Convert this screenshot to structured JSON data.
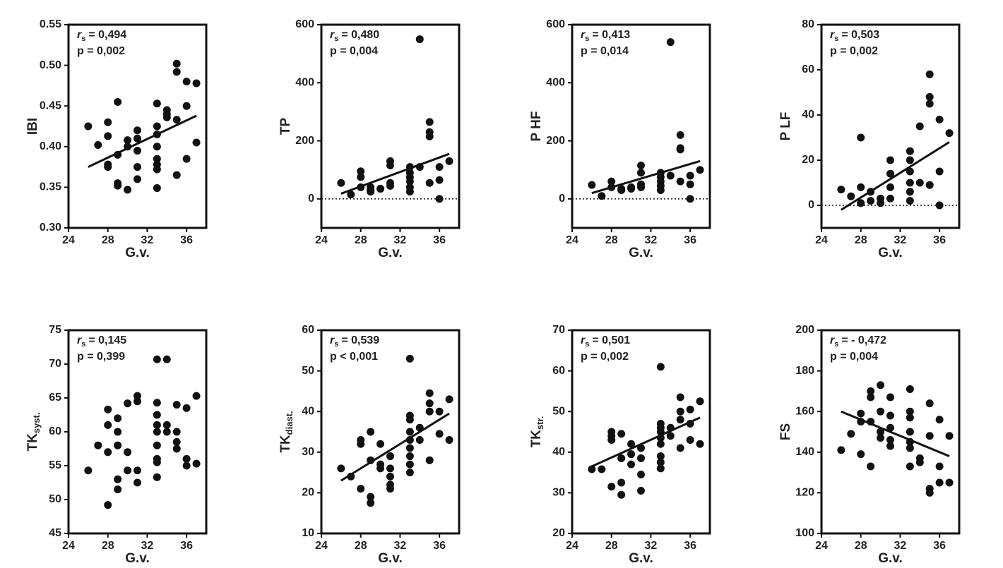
{
  "chart_data": [
    {
      "type": "scatter",
      "ylabel": "IBI",
      "xlabel": "G.v.",
      "annotation": {
        "r": "r",
        "sub": "s",
        "stat": "= 0,494",
        "p": "p = 0,002"
      },
      "xlim": [
        24,
        38
      ],
      "xticks": [
        24,
        28,
        32,
        36
      ],
      "ylim": [
        0.3,
        0.55
      ],
      "yticks": [
        {
          "value": 0.3,
          "label": "0.30"
        },
        0.35,
        {
          "value": 0.4,
          "label": "0.40"
        },
        0.45,
        {
          "value": 0.5,
          "label": "0.50"
        },
        0.55
      ],
      "zero_line": false,
      "x": [
        26,
        27,
        28,
        28,
        28,
        28,
        29,
        29,
        29,
        29,
        30,
        30,
        30,
        31,
        31,
        31,
        31,
        31,
        33,
        33,
        33,
        33,
        33,
        33,
        33,
        33,
        34,
        34,
        34,
        35,
        35,
        35,
        35,
        36,
        36,
        36,
        37,
        37
      ],
      "y": [
        0.425,
        0.402,
        0.43,
        0.413,
        0.378,
        0.375,
        0.455,
        0.39,
        0.355,
        0.352,
        0.408,
        0.4,
        0.347,
        0.42,
        0.41,
        0.395,
        0.375,
        0.36,
        0.453,
        0.425,
        0.415,
        0.4,
        0.385,
        0.378,
        0.372,
        0.349,
        0.445,
        0.44,
        0.436,
        0.502,
        0.492,
        0.433,
        0.365,
        0.48,
        0.45,
        0.385,
        0.478,
        0.405
      ],
      "fit": {
        "x": [
          26,
          37
        ],
        "y": [
          0.375,
          0.438
        ]
      }
    },
    {
      "type": "scatter",
      "ylabel": "TP",
      "xlabel": "G.v.",
      "annotation": {
        "r": "r",
        "sub": "s",
        "stat": "= 0,480",
        "p": "p = 0,004"
      },
      "xlim": [
        24,
        38
      ],
      "xticks": [
        24,
        28,
        32,
        36
      ],
      "ylim": [
        -100,
        600
      ],
      "yticks": [
        0,
        200,
        400,
        600
      ],
      "zero_line": true,
      "x": [
        26,
        27,
        28,
        28,
        28,
        29,
        29,
        29,
        30,
        30,
        31,
        31,
        31,
        31,
        33,
        33,
        33,
        33,
        33,
        33,
        34,
        34,
        35,
        35,
        35,
        35,
        36,
        36,
        36,
        37
      ],
      "y": [
        55,
        15,
        95,
        75,
        40,
        40,
        30,
        25,
        35,
        35,
        130,
        115,
        55,
        45,
        110,
        90,
        75,
        60,
        40,
        25,
        550,
        110,
        265,
        230,
        215,
        55,
        110,
        65,
        0,
        130
      ],
      "fit": {
        "x": [
          26,
          37
        ],
        "y": [
          18,
          155
        ]
      }
    },
    {
      "type": "scatter",
      "ylabel": "P HF",
      "xlabel": "G.v.",
      "annotation": {
        "r": "r",
        "sub": "s",
        "stat": "= 0,413",
        "p": "p = 0,014"
      },
      "xlim": [
        24,
        38
      ],
      "xticks": [
        24,
        28,
        32,
        36
      ],
      "ylim": [
        -100,
        600
      ],
      "yticks": [
        0,
        200,
        400,
        600
      ],
      "zero_line": true,
      "x": [
        26,
        27,
        28,
        28,
        29,
        29,
        30,
        30,
        31,
        31,
        31,
        31,
        33,
        33,
        33,
        33,
        33,
        34,
        34,
        35,
        35,
        35,
        35,
        36,
        36,
        36,
        37
      ],
      "y": [
        48,
        10,
        60,
        40,
        35,
        30,
        40,
        35,
        115,
        90,
        50,
        40,
        90,
        75,
        60,
        45,
        30,
        540,
        80,
        220,
        175,
        170,
        60,
        80,
        50,
        0,
        100
      ],
      "fit": {
        "x": [
          26,
          37
        ],
        "y": [
          20,
          130
        ]
      }
    },
    {
      "type": "scatter",
      "ylabel": "P LF",
      "xlabel": "G.v.",
      "annotation": {
        "r": "r",
        "sub": "s",
        "stat": "= 0,503",
        "p": "p = 0,002"
      },
      "xlim": [
        24,
        38
      ],
      "xticks": [
        24,
        28,
        32,
        36
      ],
      "ylim": [
        -10,
        80
      ],
      "yticks": [
        0,
        20,
        40,
        60,
        80
      ],
      "zero_line": true,
      "x": [
        26,
        27,
        28,
        28,
        28,
        29,
        29,
        30,
        30,
        31,
        31,
        31,
        31,
        33,
        33,
        33,
        33,
        33,
        33,
        34,
        34,
        35,
        35,
        35,
        35,
        36,
        36,
        36,
        37
      ],
      "y": [
        7,
        4,
        30,
        8,
        1,
        6,
        2,
        3,
        1,
        20,
        14,
        8,
        3,
        24,
        20,
        15,
        10,
        6,
        2,
        35,
        10,
        58,
        48,
        45,
        9,
        38,
        15,
        0,
        32
      ],
      "fit": {
        "x": [
          26,
          37
        ],
        "y": [
          -2,
          28
        ]
      }
    },
    {
      "type": "scatter",
      "ylabel": "TK",
      "ylabel_sub": "syst.",
      "xlabel": "G.v.",
      "annotation": {
        "r": "r",
        "sub": "s",
        "stat": "= 0,145",
        "p": "p = 0,399"
      },
      "xlim": [
        24,
        38
      ],
      "xticks": [
        24,
        28,
        32,
        36
      ],
      "ylim": [
        45,
        75
      ],
      "yticks": [
        45,
        50,
        55,
        60,
        65,
        70,
        75
      ],
      "zero_line": false,
      "x": [
        26,
        27,
        28,
        28,
        28,
        28,
        29,
        29,
        29,
        29,
        29,
        30,
        30,
        30,
        31,
        31,
        31,
        31,
        33,
        33,
        33,
        33,
        33,
        33,
        33,
        33,
        33,
        34,
        34,
        34,
        35,
        35,
        35,
        35,
        36,
        36,
        36,
        37,
        37
      ],
      "y": [
        54.3,
        58,
        63.3,
        61,
        57,
        49.2,
        62,
        60,
        58,
        53,
        51.5,
        64.2,
        57,
        54.3,
        65.3,
        64.5,
        54.3,
        52.5,
        70.7,
        64.3,
        62.5,
        61,
        60,
        58,
        56,
        55.5,
        53.3,
        70.7,
        61,
        60,
        64,
        60,
        58.5,
        57.5,
        63.5,
        56,
        55,
        65.3,
        55.3
      ]
    },
    {
      "type": "scatter",
      "ylabel": "TK",
      "ylabel_sub": "diast.",
      "xlabel": "G.v.",
      "annotation": {
        "r": "r",
        "sub": "s",
        "stat": "= 0,539",
        "p": "p < 0,001"
      },
      "xlim": [
        24,
        38
      ],
      "xticks": [
        24,
        28,
        32,
        36
      ],
      "ylim": [
        10,
        60
      ],
      "yticks": [
        10,
        20,
        30,
        40,
        50,
        60
      ],
      "zero_line": false,
      "x": [
        26,
        27,
        28,
        28,
        28,
        29,
        29,
        29,
        29,
        30,
        30,
        30,
        31,
        31,
        31,
        31,
        31,
        33,
        33,
        33,
        33,
        33,
        33,
        33,
        33,
        33,
        34,
        34,
        35,
        35,
        35,
        35,
        36,
        36,
        37,
        37
      ],
      "y": [
        26,
        24,
        33,
        32,
        21,
        35,
        28,
        19,
        17.5,
        32,
        27,
        26,
        29,
        26,
        24,
        22,
        21,
        53,
        39,
        38,
        35,
        33,
        31,
        29,
        27,
        25,
        36,
        33,
        44.5,
        42,
        40,
        28,
        40,
        34.5,
        43,
        33
      ],
      "fit": {
        "x": [
          26,
          37
        ],
        "y": [
          23,
          39.5
        ]
      }
    },
    {
      "type": "scatter",
      "ylabel": "TK",
      "ylabel_sub": "str.",
      "xlabel": "G.v.",
      "annotation": {
        "r": "r",
        "sub": "s",
        "stat": "= 0,501",
        "p": "p = 0,002"
      },
      "xlim": [
        24,
        38
      ],
      "xticks": [
        24,
        28,
        32,
        36
      ],
      "ylim": [
        20,
        70
      ],
      "yticks": [
        20,
        30,
        40,
        50,
        60,
        70
      ],
      "zero_line": false,
      "x": [
        26,
        27,
        28,
        28,
        28,
        28,
        29,
        29,
        29,
        29,
        30,
        30,
        30,
        31,
        31,
        31,
        31,
        33,
        33,
        33,
        33,
        33,
        33,
        33,
        33,
        33,
        34,
        34,
        35,
        35,
        35,
        35,
        36,
        36,
        36,
        37,
        37
      ],
      "y": [
        35.8,
        35.8,
        45,
        44,
        43,
        31.5,
        44.5,
        38.5,
        32.5,
        29.5,
        42,
        39.5,
        37,
        41,
        38.5,
        34.5,
        30.5,
        61,
        47,
        46,
        45,
        43.5,
        42,
        39,
        37.5,
        36,
        46,
        44,
        53.5,
        50,
        48,
        41,
        50.5,
        47,
        43,
        52.5,
        42
      ],
      "fit": {
        "x": [
          26,
          37
        ],
        "y": [
          36.5,
          48.5
        ]
      }
    },
    {
      "type": "scatter",
      "ylabel": "FS",
      "xlabel": "G.v.",
      "annotation": {
        "r": "r",
        "sub": "s",
        "stat": "= - 0,472",
        "p": "p = 0,004"
      },
      "xlim": [
        24,
        38
      ],
      "xticks": [
        24,
        28,
        32,
        36
      ],
      "ylim": [
        100,
        200
      ],
      "yticks": [
        100,
        120,
        140,
        160,
        180,
        200
      ],
      "zero_line": false,
      "x": [
        26,
        27,
        28,
        28,
        28,
        29,
        29,
        29,
        29,
        30,
        30,
        30,
        30,
        31,
        31,
        31,
        31,
        31,
        33,
        33,
        33,
        33,
        33,
        33,
        33,
        34,
        34,
        35,
        35,
        35,
        35,
        36,
        36,
        36,
        37,
        37
      ],
      "y": [
        141,
        149,
        159,
        155,
        139,
        170,
        167,
        155,
        133,
        173,
        160,
        150,
        147,
        167,
        158,
        152,
        146,
        143,
        171,
        160,
        157,
        150,
        145,
        142,
        133,
        137,
        135,
        164,
        148,
        122,
        120,
        156,
        133,
        125,
        148,
        125
      ],
      "fit": {
        "x": [
          26,
          37
        ],
        "y": [
          160,
          138
        ]
      }
    }
  ]
}
